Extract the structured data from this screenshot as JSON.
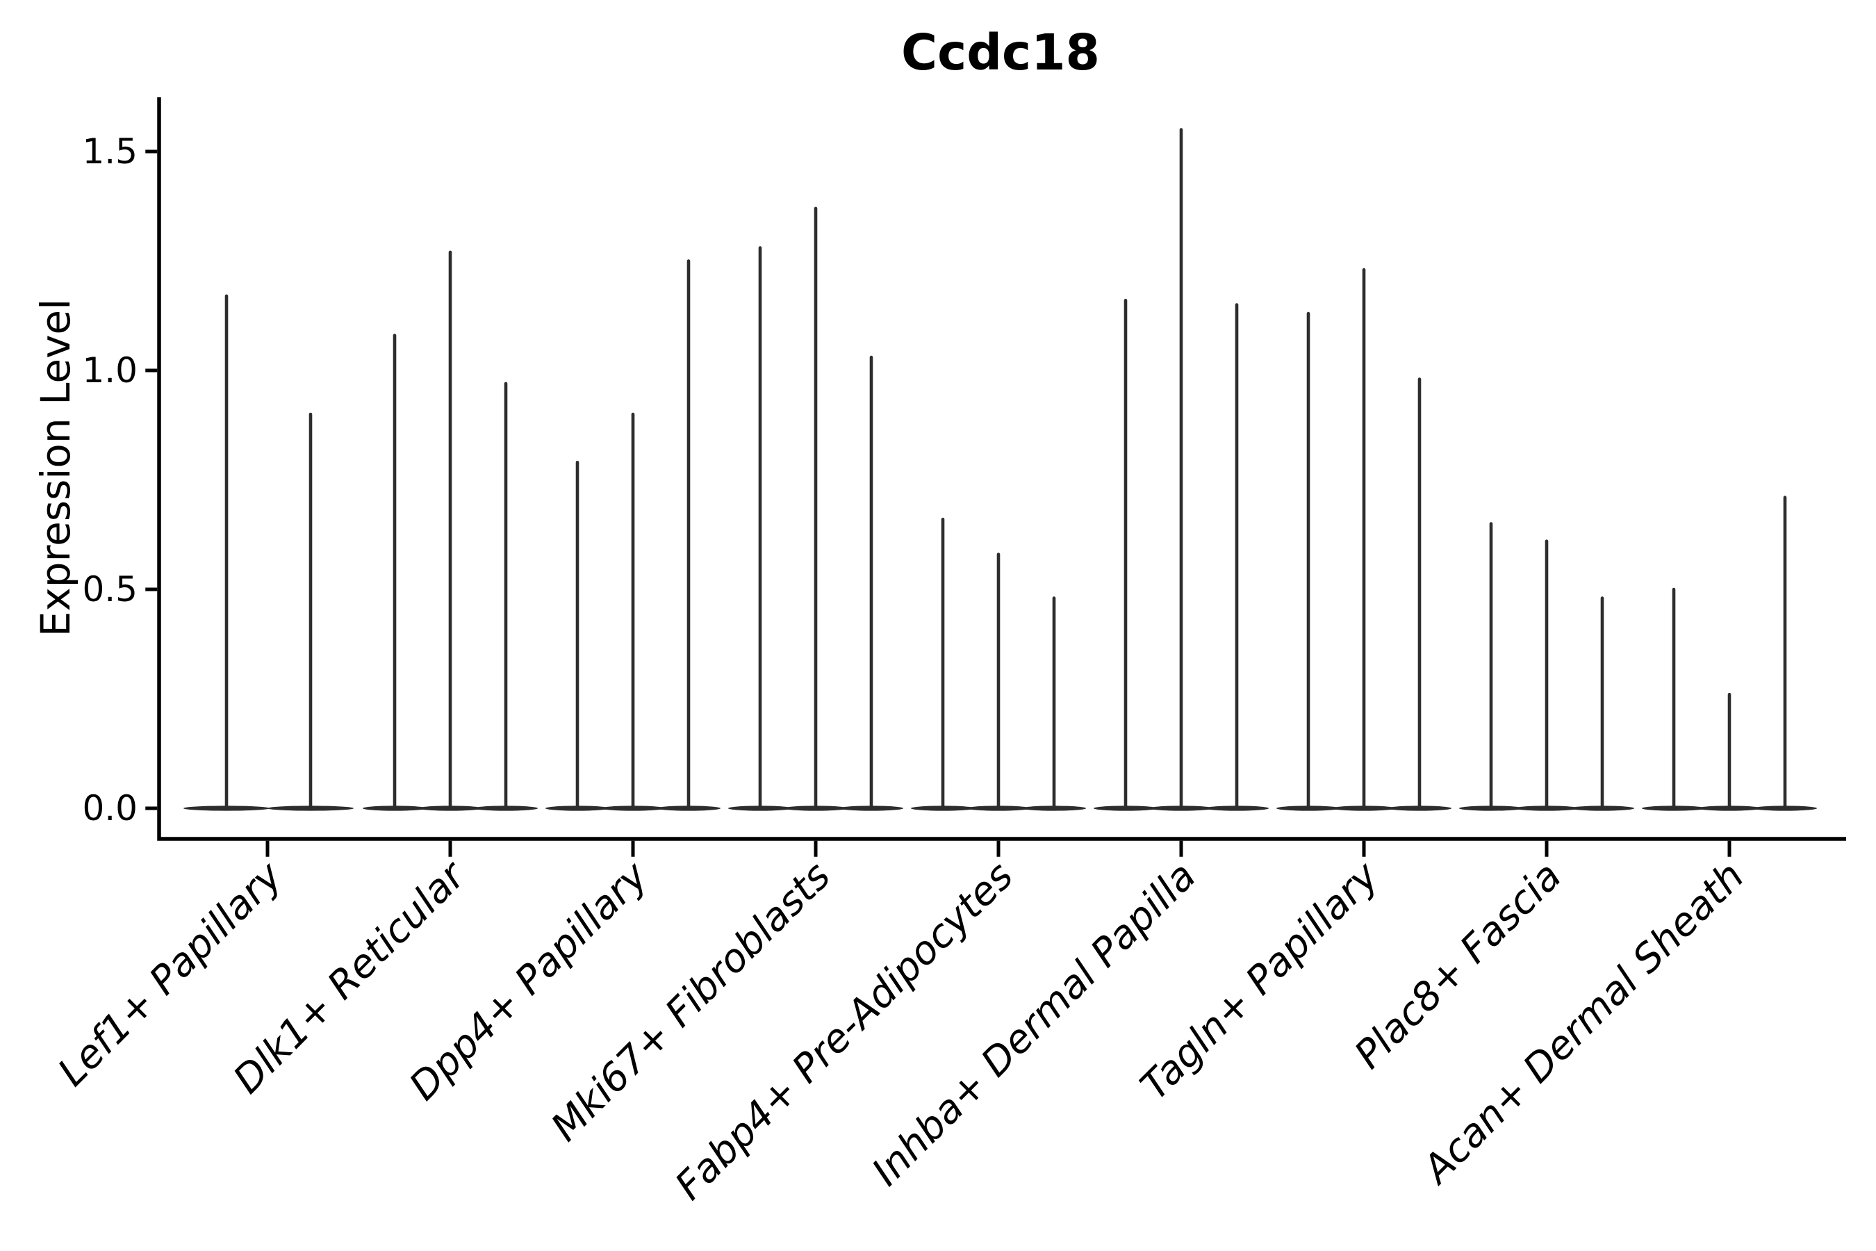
{
  "chart_data": {
    "type": "violin",
    "title": "Ccdc18",
    "ylabel": "Expression Level",
    "xlabel": "",
    "value_meaning": "violin peak = maximum expression level of the thin density spike; bulk of density is a flat lens at 0",
    "categories": [
      "Lef1+ Papillary",
      "Dlk1+ Reticular",
      "Dpp4+ Papillary",
      "Mki67+ Fibroblasts",
      "Fabp4+ Pre-Adipocytes",
      "Inhba+ Dermal Papilla",
      "Tagln+ Papillary",
      "Plac8+ Fascia",
      "Acan+ Dermal Sheath"
    ],
    "series": [
      {
        "category": "Lef1+ Papillary",
        "violins": [
          1.17,
          0.9
        ]
      },
      {
        "category": "Dlk1+ Reticular",
        "violins": [
          1.08,
          1.27,
          0.97
        ]
      },
      {
        "category": "Dpp4+ Papillary",
        "violins": [
          0.79,
          0.9,
          1.25
        ]
      },
      {
        "category": "Mki67+ Fibroblasts",
        "violins": [
          1.28,
          1.37,
          1.03
        ]
      },
      {
        "category": "Fabp4+ Pre-Adipocytes",
        "violins": [
          0.66,
          0.58,
          0.48
        ]
      },
      {
        "category": "Inhba+ Dermal Papilla",
        "violins": [
          1.16,
          1.55,
          1.15
        ]
      },
      {
        "category": "Tagln+ Papillary",
        "violins": [
          1.13,
          1.23,
          0.98
        ]
      },
      {
        "category": "Plac8+ Fascia",
        "violins": [
          0.65,
          0.61,
          0.48
        ]
      },
      {
        "category": "Acan+ Dermal Sheath",
        "violins": [
          0.5,
          0.26,
          0.71
        ]
      }
    ],
    "yticks": [
      0.0,
      0.5,
      1.0,
      1.5
    ],
    "ytick_labels": [
      "0.0",
      "0.5",
      "1.0",
      "1.5"
    ],
    "ylim": [
      -0.07,
      1.62
    ],
    "grid": false,
    "legend": "none",
    "x_tick_rotation_deg": 45,
    "x_tick_style": "italic",
    "colors": {
      "violin": "#2d2d2d",
      "axis": "#000000",
      "text": "#000000",
      "background": "#ffffff"
    }
  }
}
